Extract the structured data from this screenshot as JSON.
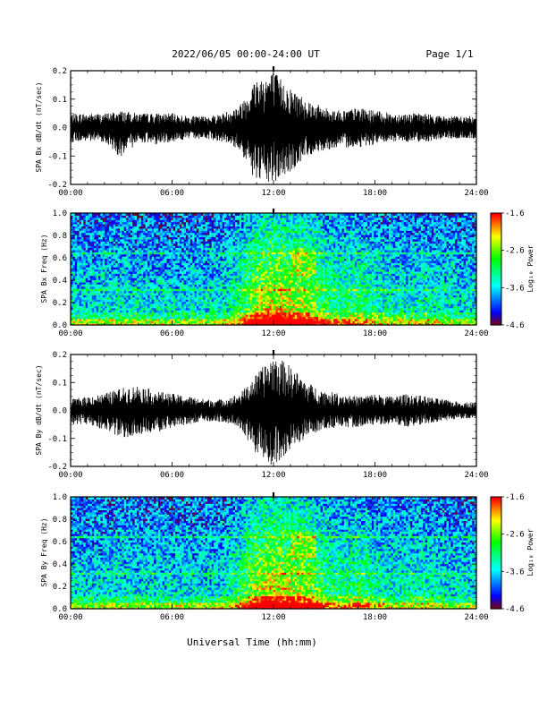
{
  "header": {
    "title": "2022/06/05  00:00-24:00 UT",
    "page": "Page 1/1"
  },
  "footer": {
    "xlabel": "Universal Time (hh:mm)"
  },
  "colorbar": {
    "label": "Log₁₀ Power",
    "ticks": [
      "-1.6",
      "-2.6",
      "-3.6",
      "-4.6"
    ],
    "range": [
      -4.6,
      -1.6
    ]
  },
  "time_ticks": [
    "00:00",
    "06:00",
    "12:00",
    "18:00",
    "24:00"
  ],
  "chart_data": [
    {
      "type": "line",
      "ylabel": "SPA Bx dB/dt (nT/sec)",
      "xlim": [
        0,
        24
      ],
      "ylim": [
        -0.2,
        0.2
      ],
      "y_ticks": [
        "0.2",
        "0.1",
        "0.0",
        "-0.1",
        "-0.2"
      ],
      "x_ticks": [
        "00:00",
        "06:00",
        "12:00",
        "18:00",
        "24:00"
      ],
      "series": [
        {
          "x": [
            0,
            1,
            2,
            3,
            4,
            5,
            6,
            7,
            8,
            9,
            10,
            11,
            12,
            13,
            14,
            15,
            16,
            17,
            18,
            19,
            20,
            21,
            22,
            23,
            24
          ],
          "y_max": [
            0.05,
            0.05,
            0.05,
            0.06,
            0.05,
            0.05,
            0.05,
            0.04,
            0.04,
            0.05,
            0.08,
            0.18,
            0.2,
            0.14,
            0.1,
            0.07,
            0.06,
            0.07,
            0.06,
            0.05,
            0.05,
            0.05,
            0.04,
            0.04,
            0.04
          ],
          "y_min": [
            -0.05,
            -0.05,
            -0.05,
            -0.11,
            -0.05,
            -0.06,
            -0.05,
            -0.04,
            -0.04,
            -0.05,
            -0.08,
            -0.2,
            -0.2,
            -0.16,
            -0.1,
            -0.08,
            -0.07,
            -0.07,
            -0.06,
            -0.05,
            -0.05,
            -0.05,
            -0.04,
            -0.04,
            -0.04
          ]
        }
      ]
    },
    {
      "type": "heatmap",
      "ylabel": "SPA Bx Freq (Hz)",
      "xlim": [
        0,
        24
      ],
      "ylim": [
        0,
        1.0
      ],
      "y_ticks": [
        "1.0",
        "0.8",
        "0.6",
        "0.4",
        "0.2",
        "0.0"
      ],
      "x_ticks": [
        "00:00",
        "06:00",
        "12:00",
        "18:00",
        "24:00"
      ],
      "colorbar_range": [
        -4.6,
        -1.6
      ]
    },
    {
      "type": "line",
      "ylabel": "SPA By dB/dt (nT/sec)",
      "xlim": [
        0,
        24
      ],
      "ylim": [
        -0.2,
        0.2
      ],
      "y_ticks": [
        "0.2",
        "0.1",
        "0.0",
        "-0.1",
        "-0.2"
      ],
      "x_ticks": [
        "00:00",
        "06:00",
        "12:00",
        "18:00",
        "24:00"
      ],
      "series": [
        {
          "x": [
            0,
            1,
            2,
            3,
            4,
            5,
            6,
            7,
            8,
            9,
            10,
            11,
            12,
            13,
            14,
            15,
            16,
            17,
            18,
            19,
            20,
            21,
            22,
            23,
            24
          ],
          "y_max": [
            0.04,
            0.05,
            0.06,
            0.08,
            0.09,
            0.07,
            0.06,
            0.05,
            0.04,
            0.04,
            0.06,
            0.13,
            0.2,
            0.16,
            0.1,
            0.07,
            0.06,
            0.05,
            0.06,
            0.05,
            0.06,
            0.05,
            0.04,
            0.03,
            0.03
          ],
          "y_min": [
            -0.05,
            -0.05,
            -0.07,
            -0.1,
            -0.09,
            -0.08,
            -0.06,
            -0.05,
            -0.04,
            -0.04,
            -0.06,
            -0.16,
            -0.2,
            -0.15,
            -0.09,
            -0.07,
            -0.06,
            -0.06,
            -0.05,
            -0.05,
            -0.06,
            -0.05,
            -0.04,
            -0.03,
            -0.03
          ]
        }
      ]
    },
    {
      "type": "heatmap",
      "ylabel": "SPA By Freq (Hz)",
      "xlim": [
        0,
        24
      ],
      "ylim": [
        0,
        1.0
      ],
      "y_ticks": [
        "1.0",
        "0.8",
        "0.6",
        "0.4",
        "0.2",
        "0.0"
      ],
      "x_ticks": [
        "00:00",
        "06:00",
        "12:00",
        "18:00",
        "24:00"
      ],
      "colorbar_range": [
        -4.6,
        -1.6
      ]
    }
  ]
}
